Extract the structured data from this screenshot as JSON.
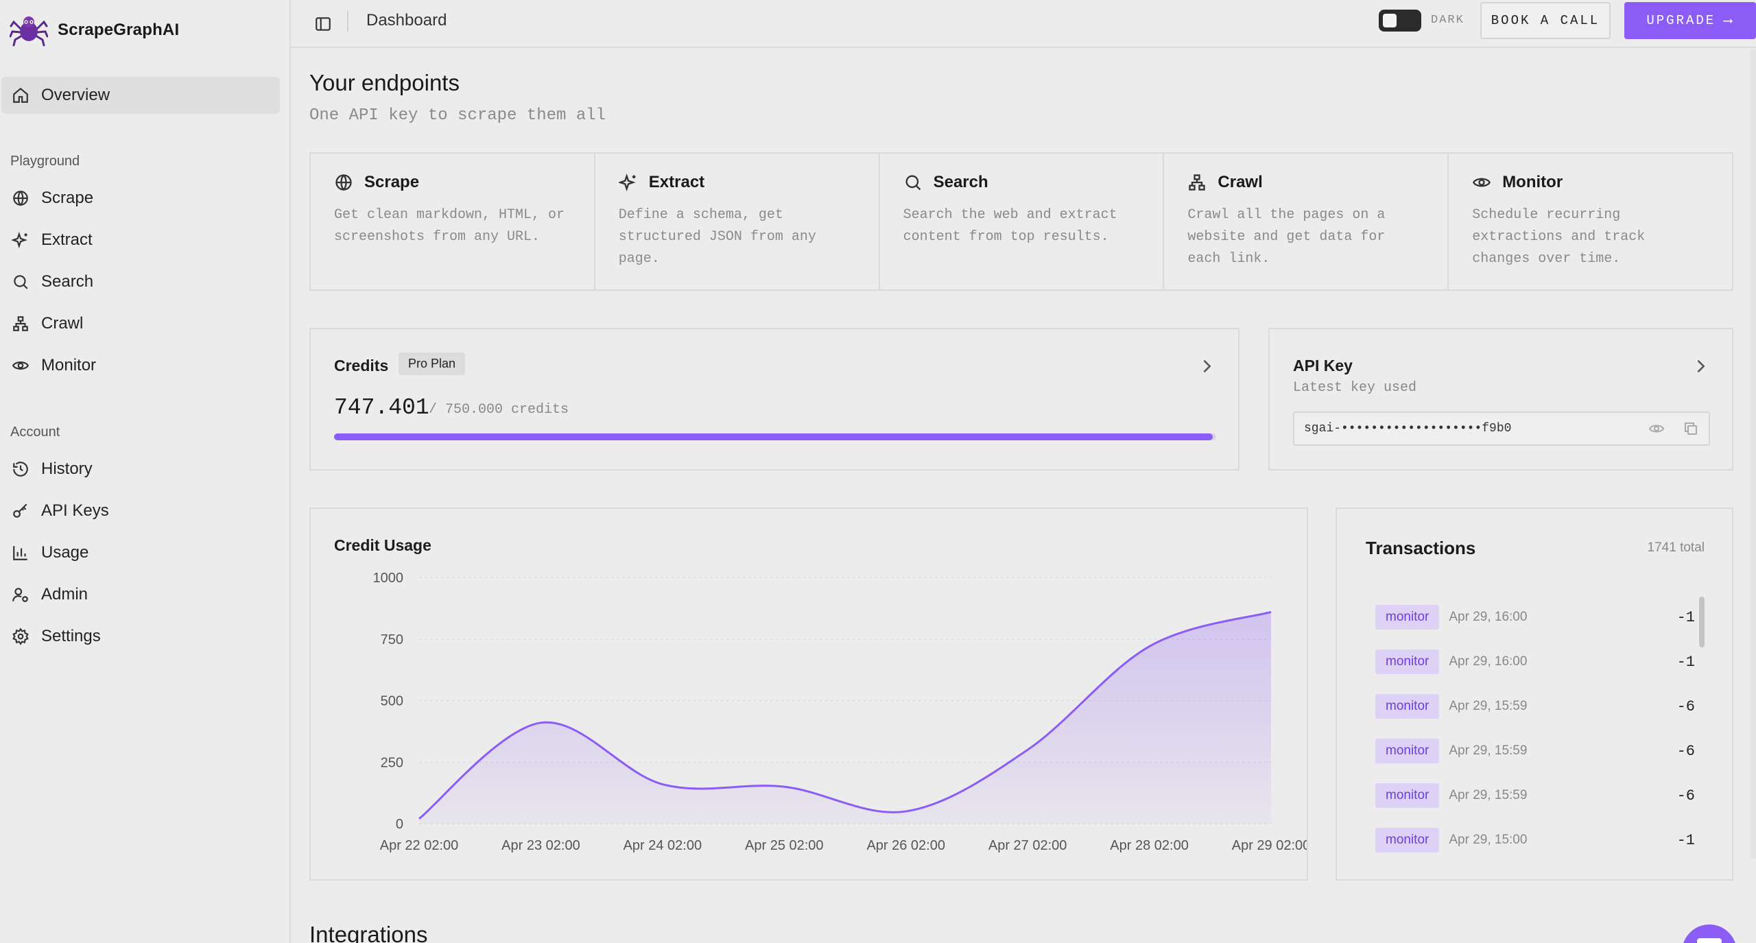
{
  "brand": {
    "name": "ScrapeGraphAI"
  },
  "sidebar": {
    "overview": "Overview",
    "playground_label": "Playground",
    "playground": [
      {
        "label": "Scrape",
        "icon": "globe-icon"
      },
      {
        "label": "Extract",
        "icon": "sparkles-icon"
      },
      {
        "label": "Search",
        "icon": "search-icon"
      },
      {
        "label": "Crawl",
        "icon": "network-icon"
      },
      {
        "label": "Monitor",
        "icon": "eye-icon"
      }
    ],
    "account_label": "Account",
    "account": [
      {
        "label": "History",
        "icon": "history-icon"
      },
      {
        "label": "API Keys",
        "icon": "key-icon"
      },
      {
        "label": "Usage",
        "icon": "bar-chart-icon"
      },
      {
        "label": "Admin",
        "icon": "user-cog-icon"
      },
      {
        "label": "Settings",
        "icon": "gear-icon"
      }
    ]
  },
  "header": {
    "title": "Dashboard",
    "toggle_label": "DARK",
    "book_call": "BOOK A CALL",
    "upgrade": "UPGRADE",
    "upgrade_arrow": "⟶"
  },
  "main": {
    "title": "Your endpoints",
    "subtitle": "One API key to scrape them all",
    "endpoints": [
      {
        "title": "Scrape",
        "desc": "Get clean markdown, HTML, or screenshots from any URL."
      },
      {
        "title": "Extract",
        "desc": "Define a schema, get structured JSON from any page."
      },
      {
        "title": "Search",
        "desc": "Search the web and extract content from top results."
      },
      {
        "title": "Crawl",
        "desc": "Crawl all the pages on a website and get data for each link."
      },
      {
        "title": "Monitor",
        "desc": "Schedule recurring extractions and track changes over time."
      }
    ],
    "integrations_title": "Integrations"
  },
  "credits": {
    "label": "Credits",
    "plan": "Pro Plan",
    "value": "747.401",
    "total": "/ 750.000 credits",
    "used_fraction": 0.9965
  },
  "api_key": {
    "label": "API Key",
    "subtitle": "Latest key used",
    "masked": "sgai-•••••••••••••••••••f9b0"
  },
  "chart_data": {
    "type": "area",
    "title": "Credit Usage",
    "x": [
      "Apr 22 02:00",
      "Apr 23 02:00",
      "Apr 24 02:00",
      "Apr 25 02:00",
      "Apr 26 02:00",
      "Apr 27 02:00",
      "Apr 28 02:00",
      "Apr 29 02:00"
    ],
    "values": [
      20,
      410,
      160,
      150,
      50,
      300,
      720,
      860
    ],
    "ylim": [
      0,
      1000
    ],
    "yticks": [
      0,
      250,
      500,
      750,
      1000
    ],
    "grid": true,
    "color": "#8b5cf6"
  },
  "transactions": {
    "title": "Transactions",
    "total": "1741 total",
    "rows": [
      {
        "type": "monitor",
        "time": "Apr 29, 16:00",
        "amount": "-1"
      },
      {
        "type": "monitor",
        "time": "Apr 29, 16:00",
        "amount": "-1"
      },
      {
        "type": "monitor",
        "time": "Apr 29, 15:59",
        "amount": "-6"
      },
      {
        "type": "monitor",
        "time": "Apr 29, 15:59",
        "amount": "-6"
      },
      {
        "type": "monitor",
        "time": "Apr 29, 15:59",
        "amount": "-6"
      },
      {
        "type": "monitor",
        "time": "Apr 29, 15:00",
        "amount": "-1"
      }
    ]
  }
}
